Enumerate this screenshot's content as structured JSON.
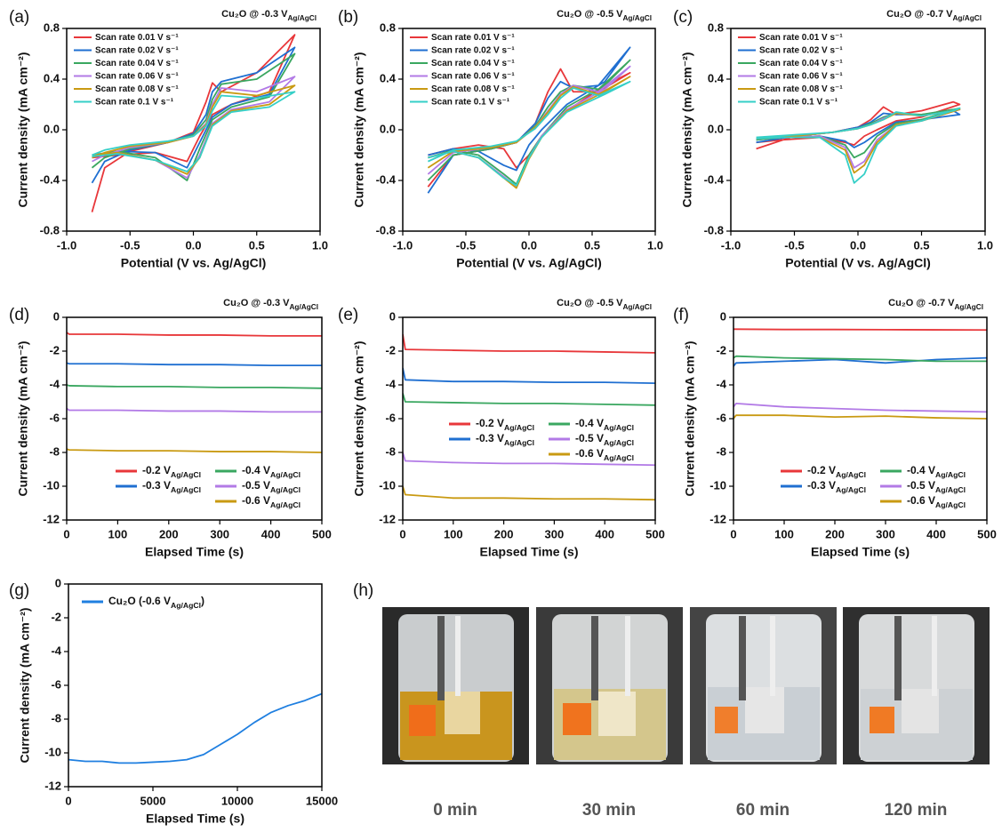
{
  "chart_data": [
    {
      "type": "line",
      "panel_label": "(a)",
      "title": "Cu₂O @ -0.3 V",
      "title_subscript": "Ag/AgCl",
      "x_label": "Potential (V vs. Ag/AgCl)",
      "y_label": "Current density (mA cm⁻²)",
      "xlim": [
        -1,
        1
      ],
      "ylim": [
        -0.8,
        0.8
      ],
      "xticks": [
        {
          "value": -1,
          "label": "-1.0"
        },
        -0.5,
        {
          "value": 0,
          "label": "0.0"
        },
        0.5,
        {
          "value": 1,
          "label": "1.0"
        }
      ],
      "yticks": [
        -0.8,
        -0.4,
        {
          "value": 0,
          "label": "0.0"
        },
        0.4,
        0.8
      ],
      "legend": "upper left",
      "legend_columns": 1,
      "x": [
        -0.8,
        -0.7,
        -0.5,
        -0.2,
        0,
        0.1,
        0.15,
        0.22,
        0.5,
        0.8,
        0.6,
        0.3,
        0.15,
        0.05,
        -0.05,
        -0.3,
        -0.6,
        -0.8
      ],
      "series": [
        {
          "name": "Scan rate 0.01 V s⁻¹",
          "color": "#e8373a",
          "values": [
            -0.65,
            -0.3,
            -0.17,
            -0.1,
            -0.02,
            0.22,
            0.37,
            0.3,
            0.45,
            0.75,
            0.3,
            0.2,
            0.12,
            -0.05,
            -0.25,
            -0.18,
            -0.2,
            -0.22
          ]
        },
        {
          "name": "Scan rate 0.02 V s⁻¹",
          "color": "#1f6fd1",
          "values": [
            -0.42,
            -0.25,
            -0.16,
            -0.1,
            -0.03,
            0.12,
            0.3,
            0.38,
            0.45,
            0.65,
            0.28,
            0.2,
            0.1,
            -0.1,
            -0.3,
            -0.18,
            -0.17,
            -0.2
          ]
        },
        {
          "name": "Scan rate 0.04 V s⁻¹",
          "color": "#3aa760",
          "values": [
            -0.3,
            -0.22,
            -0.15,
            -0.1,
            -0.04,
            0.08,
            0.24,
            0.36,
            0.4,
            0.6,
            0.26,
            0.18,
            0.08,
            -0.15,
            -0.4,
            -0.22,
            -0.17,
            -0.2
          ]
        },
        {
          "name": "Scan rate 0.06 V s⁻¹",
          "color": "#b27ae6",
          "values": [
            -0.25,
            -0.2,
            -0.14,
            -0.1,
            -0.05,
            0.05,
            0.2,
            0.33,
            0.3,
            0.42,
            0.22,
            0.16,
            0.05,
            -0.2,
            -0.38,
            -0.24,
            -0.18,
            -0.2
          ]
        },
        {
          "name": "Scan rate 0.08 V s⁻¹",
          "color": "#c99a12",
          "values": [
            -0.22,
            -0.18,
            -0.13,
            -0.1,
            -0.05,
            0.04,
            0.18,
            0.3,
            0.27,
            0.35,
            0.2,
            0.15,
            0.04,
            -0.22,
            -0.35,
            -0.24,
            -0.18,
            -0.2
          ]
        },
        {
          "name": "Scan rate 0.1 V s⁻¹",
          "color": "#35cfc7",
          "values": [
            -0.2,
            -0.16,
            -0.12,
            -0.09,
            -0.05,
            0.03,
            0.15,
            0.27,
            0.25,
            0.3,
            0.18,
            0.14,
            0.03,
            -0.22,
            -0.33,
            -0.24,
            -0.19,
            -0.21
          ]
        }
      ]
    },
    {
      "type": "line",
      "panel_label": "(b)",
      "title": "Cu₂O @ -0.5 V",
      "title_subscript": "Ag/AgCl",
      "x_label": "Potential (V vs. Ag/AgCl)",
      "y_label": "Current density (mA cm⁻²)",
      "xlim": [
        -1,
        1
      ],
      "ylim": [
        -0.8,
        0.8
      ],
      "xticks": [
        {
          "value": -1,
          "label": "-1.0"
        },
        -0.5,
        {
          "value": 0,
          "label": "0.0"
        },
        0.5,
        {
          "value": 1,
          "label": "1.0"
        }
      ],
      "yticks": [
        -0.8,
        -0.4,
        {
          "value": 0,
          "label": "0.0"
        },
        0.4,
        0.8
      ],
      "legend": "upper left",
      "legend_columns": 1,
      "x": [
        -0.8,
        -0.6,
        -0.3,
        -0.1,
        0.05,
        0.15,
        0.25,
        0.35,
        0.55,
        0.8,
        0.6,
        0.3,
        0.1,
        0,
        -0.1,
        -0.2,
        -0.4,
        -0.6,
        -0.8
      ],
      "series": [
        {
          "name": "Scan rate 0.01 V s⁻¹",
          "color": "#e8373a",
          "values": [
            -0.45,
            -0.2,
            -0.15,
            -0.1,
            0.05,
            0.3,
            0.48,
            0.3,
            0.3,
            0.45,
            0.35,
            0.15,
            -0.05,
            -0.2,
            -0.3,
            -0.15,
            -0.12,
            -0.15,
            -0.2
          ]
        },
        {
          "name": "Scan rate 0.02 V s⁻¹",
          "color": "#1f6fd1",
          "values": [
            -0.5,
            -0.2,
            -0.15,
            -0.1,
            0.05,
            0.25,
            0.38,
            0.33,
            0.35,
            0.65,
            0.38,
            0.2,
            0,
            -0.12,
            -0.32,
            -0.28,
            -0.17,
            -0.15,
            -0.2
          ]
        },
        {
          "name": "Scan rate 0.04 V s⁻¹",
          "color": "#3aa760",
          "values": [
            -0.4,
            -0.2,
            -0.15,
            -0.1,
            0.03,
            0.18,
            0.3,
            0.35,
            0.32,
            0.55,
            0.35,
            0.18,
            -0.05,
            -0.2,
            -0.43,
            -0.35,
            -0.2,
            -0.16,
            -0.22
          ]
        },
        {
          "name": "Scan rate 0.06 V s⁻¹",
          "color": "#b27ae6",
          "values": [
            -0.35,
            -0.18,
            -0.14,
            -0.1,
            0.02,
            0.15,
            0.28,
            0.35,
            0.3,
            0.5,
            0.32,
            0.16,
            -0.05,
            -0.22,
            -0.45,
            -0.37,
            -0.22,
            -0.17,
            -0.22
          ]
        },
        {
          "name": "Scan rate 0.08 V s⁻¹",
          "color": "#c99a12",
          "values": [
            -0.3,
            -0.17,
            -0.14,
            -0.1,
            0.02,
            0.14,
            0.27,
            0.34,
            0.28,
            0.42,
            0.3,
            0.15,
            -0.06,
            -0.23,
            -0.46,
            -0.38,
            -0.22,
            -0.17,
            -0.22
          ]
        },
        {
          "name": "Scan rate 0.1 V s⁻¹",
          "color": "#35cfc7",
          "values": [
            -0.25,
            -0.16,
            -0.13,
            -0.09,
            0.01,
            0.12,
            0.25,
            0.33,
            0.27,
            0.38,
            0.28,
            0.14,
            -0.06,
            -0.22,
            -0.44,
            -0.38,
            -0.22,
            -0.17,
            -0.22
          ]
        }
      ]
    },
    {
      "type": "line",
      "panel_label": "(c)",
      "title": "Cu₂O @ -0.7 V",
      "title_subscript": "Ag/AgCl",
      "x_label": "Potential (V vs. Ag/AgCl)",
      "y_label": "Current density (mA cm⁻²)",
      "xlim": [
        -1,
        1
      ],
      "ylim": [
        -0.8,
        0.8
      ],
      "xticks": [
        {
          "value": -1,
          "label": "-1.0"
        },
        -0.5,
        {
          "value": 0,
          "label": "0.0"
        },
        0.5,
        {
          "value": 1,
          "label": "1.0"
        }
      ],
      "yticks": [
        -0.8,
        -0.4,
        {
          "value": 0,
          "label": "0.0"
        },
        0.4,
        0.8
      ],
      "legend": "upper left",
      "legend_columns": 1,
      "x": [
        -0.8,
        -0.5,
        -0.2,
        0,
        0.1,
        0.2,
        0.3,
        0.5,
        0.75,
        0.8,
        0.5,
        0.3,
        0.15,
        0.05,
        -0.03,
        -0.1,
        -0.3,
        -0.6,
        -0.8
      ],
      "series": [
        {
          "name": "Scan rate 0.01 V s⁻¹",
          "color": "#e8373a",
          "values": [
            -0.15,
            -0.05,
            -0.02,
            0.02,
            0.08,
            0.18,
            0.12,
            0.15,
            0.22,
            0.2,
            0.1,
            0.07,
            0,
            -0.05,
            -0.12,
            -0.1,
            -0.06,
            -0.08,
            -0.1
          ]
        },
        {
          "name": "Scan rate 0.02 V s⁻¹",
          "color": "#1f6fd1",
          "values": [
            -0.1,
            -0.05,
            -0.02,
            0.02,
            0.06,
            0.13,
            0.12,
            0.12,
            0.15,
            0.12,
            0.08,
            0.06,
            -0.03,
            -0.1,
            -0.14,
            -0.09,
            -0.05,
            -0.06,
            -0.08
          ]
        },
        {
          "name": "Scan rate 0.04 V s⁻¹",
          "color": "#3aa760",
          "values": [
            -0.08,
            -0.05,
            -0.02,
            0.01,
            0.05,
            0.1,
            0.13,
            0.12,
            0.16,
            0.17,
            0.08,
            0.05,
            -0.05,
            -0.18,
            -0.22,
            -0.12,
            -0.05,
            -0.06,
            -0.08
          ]
        },
        {
          "name": "Scan rate 0.06 V s⁻¹",
          "color": "#b27ae6",
          "values": [
            -0.07,
            -0.05,
            -0.02,
            0.01,
            0.04,
            0.09,
            0.13,
            0.11,
            0.15,
            0.16,
            0.07,
            0.04,
            -0.08,
            -0.25,
            -0.3,
            -0.14,
            -0.05,
            -0.06,
            -0.07
          ]
        },
        {
          "name": "Scan rate 0.08 V s⁻¹",
          "color": "#c99a12",
          "values": [
            -0.07,
            -0.05,
            -0.02,
            0.01,
            0.04,
            0.08,
            0.13,
            0.11,
            0.15,
            0.16,
            0.07,
            0.04,
            -0.1,
            -0.28,
            -0.34,
            -0.16,
            -0.06,
            -0.06,
            -0.07
          ]
        },
        {
          "name": "Scan rate 0.1 V s⁻¹",
          "color": "#35cfc7",
          "values": [
            -0.06,
            -0.04,
            -0.02,
            0.01,
            0.04,
            0.08,
            0.14,
            0.11,
            0.15,
            0.17,
            0.07,
            0.03,
            -0.12,
            -0.35,
            -0.42,
            -0.2,
            -0.06,
            -0.06,
            -0.07
          ]
        }
      ]
    },
    {
      "type": "line",
      "panel_label": "(d)",
      "title": "Cu₂O @ -0.3 V",
      "title_subscript": "Ag/AgCl",
      "x_label": "Elapsed Time (s)",
      "y_label": "Current density (mA cm⁻²)",
      "xlim": [
        0,
        500
      ],
      "ylim": [
        -12,
        0
      ],
      "xticks": [
        0,
        100,
        200,
        300,
        400,
        500
      ],
      "yticks": [
        -12,
        -10,
        -8,
        -6,
        -4,
        -2,
        0
      ],
      "legend": "lower right",
      "legend_columns": 2,
      "x": [
        0,
        5,
        100,
        200,
        300,
        400,
        500
      ],
      "series": [
        {
          "name": "-0.2 V",
          "name_subscript": "Ag/AgCl",
          "color": "#e8373a",
          "values": [
            -0.9,
            -1.0,
            -1.0,
            -1.05,
            -1.05,
            -1.1,
            -1.1
          ]
        },
        {
          "name": "-0.3 V",
          "name_subscript": "Ag/AgCl",
          "color": "#1f6fd1",
          "values": [
            -2.7,
            -2.75,
            -2.75,
            -2.8,
            -2.8,
            -2.85,
            -2.85
          ]
        },
        {
          "name": "-0.4 V",
          "name_subscript": "Ag/AgCl",
          "color": "#3aa760",
          "values": [
            -4.0,
            -4.05,
            -4.1,
            -4.1,
            -4.15,
            -4.15,
            -4.2
          ]
        },
        {
          "name": "-0.5 V",
          "name_subscript": "Ag/AgCl",
          "color": "#b27ae6",
          "values": [
            -5.4,
            -5.5,
            -5.5,
            -5.55,
            -5.55,
            -5.6,
            -5.6
          ]
        },
        {
          "name": "-0.6 V",
          "name_subscript": "Ag/AgCl",
          "color": "#c99a12",
          "values": [
            -7.8,
            -7.85,
            -7.9,
            -7.9,
            -7.95,
            -7.95,
            -8.0
          ]
        }
      ]
    },
    {
      "type": "line",
      "panel_label": "(e)",
      "title": "Cu₂O @ -0.5 V",
      "title_subscript": "Ag/AgCl",
      "x_label": "Elapsed Time (s)",
      "y_label": "Current density (mA cm⁻²)",
      "xlim": [
        0,
        500
      ],
      "ylim": [
        -12,
        0
      ],
      "xticks": [
        0,
        100,
        200,
        300,
        400,
        500
      ],
      "yticks": [
        -12,
        -10,
        -8,
        -6,
        -4,
        -2,
        0
      ],
      "legend": "center right",
      "legend_columns": 2,
      "x": [
        0,
        5,
        100,
        200,
        300,
        400,
        500
      ],
      "series": [
        {
          "name": "-0.2 V",
          "name_subscript": "Ag/AgCl",
          "color": "#e8373a",
          "values": [
            -1.0,
            -1.9,
            -1.95,
            -2.0,
            -2.0,
            -2.05,
            -2.1
          ]
        },
        {
          "name": "-0.3 V",
          "name_subscript": "Ag/AgCl",
          "color": "#1f6fd1",
          "values": [
            -3.0,
            -3.7,
            -3.8,
            -3.8,
            -3.85,
            -3.85,
            -3.9
          ]
        },
        {
          "name": "-0.4 V",
          "name_subscript": "Ag/AgCl",
          "color": "#3aa760",
          "values": [
            -4.5,
            -5.0,
            -5.05,
            -5.1,
            -5.1,
            -5.15,
            -5.2
          ]
        },
        {
          "name": "-0.5 V",
          "name_subscript": "Ag/AgCl",
          "color": "#b27ae6",
          "values": [
            -8.0,
            -8.5,
            -8.6,
            -8.65,
            -8.65,
            -8.7,
            -8.75
          ]
        },
        {
          "name": "-0.6 V",
          "name_subscript": "Ag/AgCl",
          "color": "#c99a12",
          "values": [
            -10.0,
            -10.5,
            -10.7,
            -10.7,
            -10.75,
            -10.75,
            -10.8
          ]
        }
      ]
    },
    {
      "type": "line",
      "panel_label": "(f)",
      "title": "Cu₂O @ -0.7 V",
      "title_subscript": "Ag/AgCl",
      "x_label": "Elapsed Time (s)",
      "y_label": "Current density (mA cm⁻²)",
      "xlim": [
        0,
        500
      ],
      "ylim": [
        -12,
        0
      ],
      "xticks": [
        0,
        100,
        200,
        300,
        400,
        500
      ],
      "yticks": [
        -12,
        -10,
        -8,
        -6,
        -4,
        -2,
        0
      ],
      "legend": "lower right",
      "legend_columns": 2,
      "x": [
        0,
        5,
        100,
        200,
        300,
        400,
        500
      ],
      "series": [
        {
          "name": "-0.2 V",
          "name_subscript": "Ag/AgCl",
          "color": "#e8373a",
          "values": [
            -0.7,
            -0.7,
            -0.72,
            -0.72,
            -0.73,
            -0.74,
            -0.75
          ]
        },
        {
          "name": "-0.3 V",
          "name_subscript": "Ag/AgCl",
          "color": "#1f6fd1",
          "values": [
            -2.9,
            -2.7,
            -2.6,
            -2.5,
            -2.7,
            -2.5,
            -2.4
          ]
        },
        {
          "name": "-0.4 V",
          "name_subscript": "Ag/AgCl",
          "color": "#3aa760",
          "values": [
            -2.4,
            -2.3,
            -2.4,
            -2.45,
            -2.5,
            -2.6,
            -2.6
          ]
        },
        {
          "name": "-0.5 V",
          "name_subscript": "Ag/AgCl",
          "color": "#b27ae6",
          "values": [
            -5.3,
            -5.1,
            -5.3,
            -5.4,
            -5.5,
            -5.55,
            -5.6
          ]
        },
        {
          "name": "-0.6 V",
          "name_subscript": "Ag/AgCl",
          "color": "#c99a12",
          "values": [
            -6.0,
            -5.8,
            -5.8,
            -5.9,
            -5.85,
            -5.95,
            -6.0
          ]
        }
      ]
    },
    {
      "type": "line",
      "panel_label": "(g)",
      "x_label": "Elapsed Time (s)",
      "y_label": "Current density (mA cm⁻²)",
      "xlim": [
        0,
        15000
      ],
      "ylim": [
        -12,
        0
      ],
      "xticks": [
        0,
        5000,
        10000,
        15000
      ],
      "yticks": [
        -12,
        -10,
        -8,
        -6,
        -4,
        -2,
        0
      ],
      "legend": "upper left",
      "legend_columns": 1,
      "x": [
        0,
        1000,
        2000,
        3000,
        4000,
        5000,
        6000,
        7000,
        8000,
        9000,
        10000,
        11000,
        12000,
        13000,
        14000,
        15000
      ],
      "series": [
        {
          "name": "Cu₂O (-0.6 V",
          "name_subscript": "Ag/AgCl",
          "name_suffix": ")",
          "color": "#1f7fe0",
          "values": [
            -10.4,
            -10.5,
            -10.5,
            -10.6,
            -10.6,
            -10.55,
            -10.5,
            -10.4,
            -10.1,
            -9.5,
            -8.9,
            -8.2,
            -7.6,
            -7.2,
            -6.9,
            -6.5
          ]
        }
      ]
    }
  ],
  "photo_panel": {
    "panel_label": "(h)",
    "captions": [
      "0 min",
      "30 min",
      "60 min",
      "120 min"
    ]
  }
}
